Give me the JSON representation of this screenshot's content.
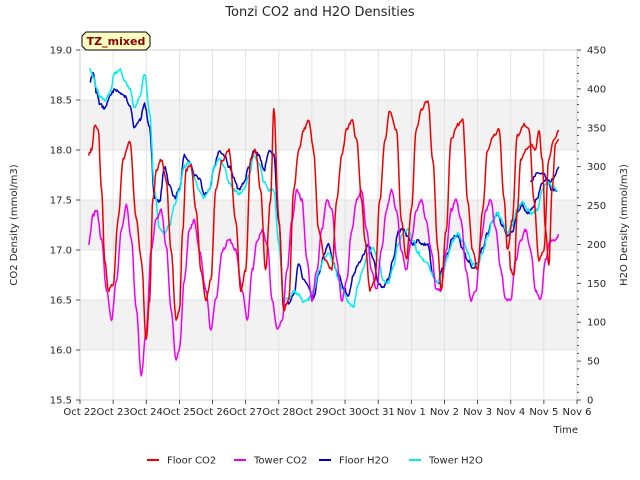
{
  "chart_data": {
    "type": "line",
    "title": "Tonzi CO2 and H2O Densities",
    "xlabel": "Time",
    "ylabel_left": "CO2 Density (mmol/m3)",
    "ylabel_right": "H2O Density (mmol/m3)",
    "site_label": "TZ_mixed",
    "x_range_days": [
      0,
      15
    ],
    "x_tick_labels": [
      "Oct 22",
      "Oct 23",
      "Oct 24",
      "Oct 25",
      "Oct 26",
      "Oct 27",
      "Oct 28",
      "Oct 29",
      "Oct 30",
      "Oct 31",
      "Nov 1",
      "Nov 2",
      "Nov 3",
      "Nov 4",
      "Nov 5",
      "Nov 6"
    ],
    "ylim_left": [
      15.5,
      19.0
    ],
    "y_ticks_left": [
      "15.5",
      "16.0",
      "16.5",
      "17.0",
      "17.5",
      "18.0",
      "18.5",
      "19.0"
    ],
    "ylim_right": [
      0,
      450
    ],
    "y_ticks_right": [
      "0",
      "50",
      "100",
      "150",
      "200",
      "250",
      "300",
      "350",
      "400",
      "450"
    ],
    "grid": true,
    "background_bands": true,
    "legend_position": "bottom-center",
    "series": [
      {
        "name": "Floor CO2",
        "axis": "left",
        "color": "#ee0000",
        "x": [
          0.25,
          0.35,
          0.45,
          0.55,
          0.65,
          0.75,
          0.85,
          1.0,
          1.15,
          1.3,
          1.5,
          1.7,
          1.85,
          2.0,
          2.1,
          2.2,
          2.3,
          2.45,
          2.6,
          2.75,
          2.9,
          3.0,
          3.1,
          3.2,
          3.35,
          3.5,
          3.65,
          3.8,
          3.95,
          4.1,
          4.3,
          4.5,
          4.7,
          4.85,
          5.0,
          5.15,
          5.3,
          5.45,
          5.6,
          5.75,
          5.85,
          6.0,
          6.15,
          6.3,
          6.45,
          6.6,
          6.75,
          6.9,
          7.05,
          7.2,
          7.4,
          7.6,
          7.75,
          7.9,
          8.05,
          8.2,
          8.35,
          8.5,
          8.6,
          8.75,
          8.9,
          9.05,
          9.2,
          9.35,
          9.55,
          9.7,
          9.85,
          10.0,
          10.15,
          10.3,
          10.5,
          10.65,
          10.8,
          10.9,
          11.05,
          11.2,
          11.4,
          11.55,
          11.7,
          11.85,
          12.0,
          12.15,
          12.3,
          12.5,
          12.65,
          12.8,
          12.9,
          13.05,
          13.2,
          13.4,
          13.55,
          13.7,
          13.85,
          14.0,
          14.15,
          14.3,
          14.45
        ],
        "y": [
          17.95,
          18.0,
          18.25,
          18.2,
          17.6,
          16.9,
          16.6,
          16.65,
          17.3,
          17.9,
          18.1,
          17.3,
          16.9,
          16.1,
          16.5,
          17.5,
          17.8,
          17.9,
          17.7,
          17.0,
          16.3,
          16.4,
          17.2,
          17.8,
          17.85,
          17.4,
          16.8,
          16.5,
          16.7,
          17.6,
          17.9,
          18.0,
          17.3,
          16.6,
          16.8,
          17.9,
          18.0,
          17.6,
          16.8,
          17.5,
          18.4,
          17.3,
          16.4,
          16.5,
          17.6,
          18.0,
          18.2,
          18.3,
          18.0,
          17.2,
          16.9,
          16.8,
          17.5,
          17.95,
          18.2,
          18.3,
          18.1,
          17.5,
          17.1,
          16.6,
          16.7,
          17.5,
          18.1,
          18.4,
          18.2,
          17.3,
          16.9,
          17.4,
          18.2,
          18.4,
          18.5,
          17.9,
          17.0,
          16.6,
          17.2,
          18.1,
          18.25,
          18.3,
          17.5,
          17.0,
          16.8,
          17.4,
          18.0,
          18.15,
          18.2,
          17.5,
          17.0,
          17.3,
          18.15,
          18.25,
          18.2,
          17.5,
          16.9,
          17.0,
          17.9,
          18.1,
          18.2
        ],
        "x2": [
          12.95,
          13.0,
          13.1,
          13.2,
          13.3,
          13.45,
          13.6,
          13.75,
          13.85,
          13.95,
          14.05,
          14.15,
          14.25,
          14.35,
          14.45
        ],
        "y2": [
          17.0,
          16.8,
          16.75,
          17.4,
          17.9,
          18.0,
          18.05,
          18.0,
          18.2,
          17.9,
          17.2,
          16.85,
          17.6,
          18.05,
          18.1
        ]
      },
      {
        "name": "Tower CO2",
        "axis": "left",
        "color": "#ee00ee",
        "x": [
          0.25,
          0.4,
          0.5,
          0.65,
          0.8,
          0.95,
          1.1,
          1.25,
          1.4,
          1.55,
          1.7,
          1.85,
          2.0,
          2.15,
          2.3,
          2.45,
          2.6,
          2.75,
          2.9,
          3.0,
          3.15,
          3.3,
          3.45,
          3.6,
          3.8,
          3.95,
          4.1,
          4.3,
          4.5,
          4.7,
          4.9,
          5.05,
          5.2,
          5.35,
          5.5,
          5.65,
          5.8,
          5.95,
          6.1,
          6.25,
          6.4,
          6.55,
          6.7,
          6.85,
          7.0,
          7.15,
          7.3,
          7.45,
          7.6,
          7.75,
          7.9,
          8.05,
          8.2,
          8.35,
          8.5,
          8.65,
          8.8,
          8.95,
          9.1,
          9.25,
          9.4,
          9.55,
          9.7,
          9.85,
          10.0,
          10.15,
          10.3,
          10.45,
          10.6,
          10.75,
          10.9,
          11.05,
          11.2,
          11.35,
          11.5,
          11.65,
          11.8,
          11.95,
          12.1,
          12.25,
          12.4,
          12.55,
          12.7,
          12.85,
          13.0,
          13.15,
          13.3,
          13.45,
          13.6,
          13.75,
          13.9,
          14.05,
          14.2,
          14.35,
          14.45
        ],
        "y": [
          17.05,
          17.35,
          17.4,
          17.1,
          16.6,
          16.3,
          16.7,
          17.2,
          17.45,
          17.1,
          16.4,
          15.75,
          16.2,
          17.0,
          17.3,
          17.4,
          17.05,
          16.4,
          15.9,
          16.0,
          16.7,
          17.2,
          17.3,
          17.0,
          16.6,
          16.2,
          16.5,
          17.0,
          17.1,
          17.0,
          16.6,
          16.3,
          16.8,
          17.1,
          17.2,
          17.05,
          16.5,
          16.2,
          16.3,
          16.8,
          17.3,
          17.6,
          17.5,
          16.9,
          16.5,
          16.8,
          17.2,
          17.5,
          17.4,
          16.9,
          16.5,
          16.7,
          17.2,
          17.5,
          17.6,
          17.2,
          16.8,
          16.6,
          17.0,
          17.4,
          17.6,
          17.4,
          17.0,
          16.8,
          17.1,
          17.4,
          17.5,
          17.3,
          17.0,
          16.6,
          16.6,
          17.0,
          17.4,
          17.5,
          17.3,
          16.8,
          16.5,
          16.6,
          17.1,
          17.4,
          17.5,
          17.2,
          16.8,
          16.5,
          16.5,
          16.9,
          17.1,
          17.2,
          17.0,
          16.6,
          16.5,
          16.9,
          17.1,
          17.1,
          17.15
        ]
      },
      {
        "name": "Floor H2O",
        "axis": "right",
        "color": "#0000cc",
        "x": [
          0.3,
          0.4,
          0.5,
          0.6,
          0.75,
          0.9,
          1.05,
          1.2,
          1.35,
          1.5,
          1.65,
          1.8,
          1.95,
          2.1,
          2.25,
          2.4,
          2.55,
          2.7,
          2.85,
          3.0,
          3.15,
          3.3,
          3.45,
          3.6,
          3.75,
          3.9,
          4.05,
          4.2,
          4.35,
          4.5,
          4.65,
          4.8,
          4.95,
          5.1,
          5.25,
          5.4,
          5.55,
          5.7,
          5.85,
          6.0,
          6.15,
          6.3,
          6.45,
          6.6,
          6.75,
          6.9,
          7.05,
          7.2,
          7.35,
          7.5,
          7.65,
          7.8,
          7.95,
          8.1,
          8.25,
          8.4,
          8.55,
          8.7,
          8.85,
          9.0,
          9.15,
          9.3,
          9.45,
          9.6,
          9.75,
          9.9,
          10.05,
          10.2,
          10.35,
          10.5,
          10.65,
          10.8,
          10.95,
          11.1,
          11.25,
          11.4,
          11.55,
          11.7,
          11.85,
          12.0,
          12.15,
          12.3,
          12.45,
          12.6,
          12.75,
          12.9,
          13.05,
          13.2,
          13.35,
          13.5,
          13.65,
          13.8,
          13.95,
          14.1,
          14.25,
          14.4
        ],
        "y": [
          410,
          420,
          395,
          380,
          375,
          390,
          400,
          395,
          390,
          380,
          350,
          360,
          380,
          350,
          260,
          255,
          300,
          275,
          260,
          270,
          315,
          305,
          290,
          285,
          265,
          270,
          300,
          320,
          315,
          300,
          285,
          270,
          280,
          300,
          320,
          315,
          295,
          320,
          315,
          230,
          120,
          125,
          135,
          175,
          155,
          145,
          130,
          160,
          185,
          200,
          175,
          160,
          145,
          135,
          160,
          175,
          185,
          200,
          180,
          150,
          145,
          155,
          180,
          215,
          220,
          210,
          200,
          205,
          200,
          200,
          160,
          150,
          170,
          190,
          210,
          210,
          195,
          180,
          170,
          175,
          195,
          215,
          230,
          240,
          225,
          210,
          215,
          240,
          250,
          240,
          245,
          260,
          280,
          285,
          270,
          270
        ],
        "x2": [
          13.6,
          13.8,
          14.0,
          14.15,
          14.3,
          14.45
        ],
        "y2": [
          280,
          292,
          290,
          278,
          285,
          300
        ]
      },
      {
        "name": "Tower H2O",
        "axis": "right",
        "color": "#00eeee",
        "x": [
          0.3,
          0.4,
          0.5,
          0.6,
          0.75,
          0.9,
          1.05,
          1.2,
          1.35,
          1.5,
          1.65,
          1.8,
          1.95,
          2.1,
          2.25,
          2.4,
          2.55,
          2.7,
          2.85,
          3.0,
          3.15,
          3.3,
          3.45,
          3.6,
          3.75,
          3.9,
          4.05,
          4.2,
          4.35,
          4.5,
          4.65,
          4.8,
          4.95,
          5.1,
          5.25,
          5.4,
          5.55,
          5.7,
          5.85,
          6.0,
          6.15,
          6.3,
          6.45,
          6.6,
          6.75,
          6.9,
          7.05,
          7.2,
          7.35,
          7.5,
          7.65,
          7.8,
          7.95,
          8.1,
          8.25,
          8.4,
          8.55,
          8.7,
          8.85,
          9.0,
          9.15,
          9.3,
          9.45,
          9.6,
          9.75,
          9.9,
          10.05,
          10.2,
          10.35,
          10.5,
          10.65,
          10.8,
          10.95,
          11.1,
          11.25,
          11.4,
          11.55,
          11.7,
          11.85,
          12.0,
          12.15,
          12.3,
          12.45,
          12.6,
          12.75,
          12.9,
          13.05,
          13.2,
          13.35,
          13.5,
          13.65,
          13.8,
          13.95,
          14.1,
          14.25,
          14.4
        ],
        "y": [
          425,
          415,
          400,
          390,
          385,
          395,
          420,
          425,
          410,
          400,
          375,
          390,
          420,
          370,
          270,
          220,
          215,
          225,
          250,
          270,
          300,
          305,
          285,
          270,
          260,
          270,
          300,
          310,
          300,
          280,
          270,
          265,
          270,
          290,
          315,
          305,
          280,
          270,
          270,
          200,
          130,
          130,
          140,
          135,
          125,
          130,
          140,
          165,
          180,
          190,
          175,
          155,
          140,
          125,
          120,
          150,
          170,
          190,
          195,
          180,
          155,
          150,
          170,
          200,
          215,
          220,
          205,
          190,
          180,
          175,
          160,
          150,
          165,
          185,
          205,
          215,
          205,
          190,
          175,
          175,
          190,
          210,
          230,
          240,
          230,
          215,
          225,
          245,
          255,
          245,
          240,
          245,
          270,
          280,
          275,
          270
        ]
      }
    ]
  }
}
